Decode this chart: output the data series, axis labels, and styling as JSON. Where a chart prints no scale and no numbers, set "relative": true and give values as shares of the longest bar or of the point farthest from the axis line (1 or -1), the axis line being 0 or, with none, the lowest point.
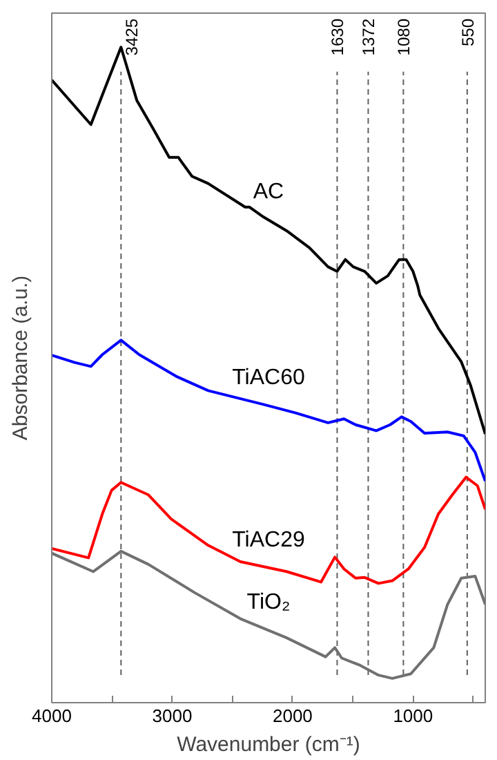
{
  "chart_data": {
    "type": "line",
    "relative": true,
    "xlabel": "Wavenumber (cm⁻¹)",
    "ylabel": "Absorbance (a.u.)",
    "xlim": [
      4000,
      400
    ],
    "xticks": [
      4000,
      {
        "value": 3500,
        "label": null
      },
      3000,
      {
        "value": 2500,
        "label": null
      },
      2000,
      {
        "value": 1500,
        "label": null
      },
      1000,
      {
        "value": 500,
        "label": null
      }
    ],
    "grid": false,
    "line_style": "solid",
    "marker": "none",
    "series": [
      {
        "name": "AC",
        "color": "#000000",
        "x": [
          4000,
          3790,
          3675,
          3580,
          3425,
          3389,
          3294,
          3159,
          3025,
          2949,
          2922,
          2835,
          2701,
          2394,
          2357,
          2242,
          2050,
          1860,
          1706,
          1631,
          1562,
          1497,
          1401,
          1305,
          1210,
          1115,
          1057,
          1000,
          961,
          943,
          789,
          599,
          522,
          400
        ],
        "values": [
          0.95,
          0.906,
          0.882,
          0.927,
          1.0,
          0.978,
          0.919,
          0.876,
          0.832,
          0.832,
          0.825,
          0.803,
          0.792,
          0.756,
          0.756,
          0.741,
          0.72,
          0.694,
          0.665,
          0.658,
          0.676,
          0.665,
          0.658,
          0.64,
          0.651,
          0.676,
          0.676,
          0.658,
          0.636,
          0.622,
          0.571,
          0.52,
          0.484,
          0.41
        ]
      },
      {
        "name": "TiAC60",
        "color": "#0000ff",
        "x": [
          4000,
          3810,
          3675,
          3580,
          3425,
          3274,
          2968,
          2701,
          2242,
          1975,
          1706,
          1573,
          1477,
          1305,
          1190,
          1095,
          1018,
          904,
          713,
          579,
          484,
          400
        ],
        "values": [
          0.53,
          0.519,
          0.513,
          0.531,
          0.553,
          0.531,
          0.498,
          0.476,
          0.455,
          0.442,
          0.427,
          0.433,
          0.424,
          0.415,
          0.424,
          0.436,
          0.429,
          0.411,
          0.413,
          0.407,
          0.382,
          0.338
        ]
      },
      {
        "name": "TiAC29",
        "color": "#ff0000",
        "x": [
          4000,
          3695,
          3580,
          3503,
          3425,
          3197,
          3007,
          2701,
          2433,
          2050,
          1764,
          1649,
          1573,
          1477,
          1401,
          1287,
          1172,
          1038,
          904,
          789,
          674,
          560,
          465,
          400
        ],
        "values": [
          0.235,
          0.221,
          0.288,
          0.324,
          0.336,
          0.317,
          0.28,
          0.24,
          0.215,
          0.2,
          0.184,
          0.222,
          0.204,
          0.19,
          0.191,
          0.182,
          0.186,
          0.204,
          0.237,
          0.288,
          0.317,
          0.344,
          0.331,
          0.295
        ]
      },
      {
        "name": "TiO₂",
        "color": "#707070",
        "x": [
          4000,
          3656,
          3425,
          3197,
          2815,
          2433,
          2050,
          1726,
          1649,
          1592,
          1439,
          1287,
          1172,
          1018,
          828,
          713,
          599,
          484,
          400
        ],
        "values": [
          0.228,
          0.2,
          0.231,
          0.211,
          0.168,
          0.128,
          0.099,
          0.07,
          0.084,
          0.068,
          0.057,
          0.042,
          0.037,
          0.044,
          0.084,
          0.15,
          0.19,
          0.193,
          0.15
        ]
      }
    ],
    "ref_lines": [
      {
        "axis": "x",
        "value": 3425,
        "label": "3425",
        "color": "#606060",
        "line_style": "dashed"
      },
      {
        "axis": "x",
        "value": 1630,
        "label": "1630",
        "color": "#606060",
        "line_style": "dashed"
      },
      {
        "axis": "x",
        "value": 1372,
        "label": "1372",
        "color": "#606060",
        "line_style": "dashed"
      },
      {
        "axis": "x",
        "value": 1080,
        "label": "1080",
        "color": "#606060",
        "line_style": "dashed"
      },
      {
        "axis": "x",
        "value": 550,
        "label": "550",
        "color": "#606060",
        "line_style": "dashed"
      }
    ]
  }
}
